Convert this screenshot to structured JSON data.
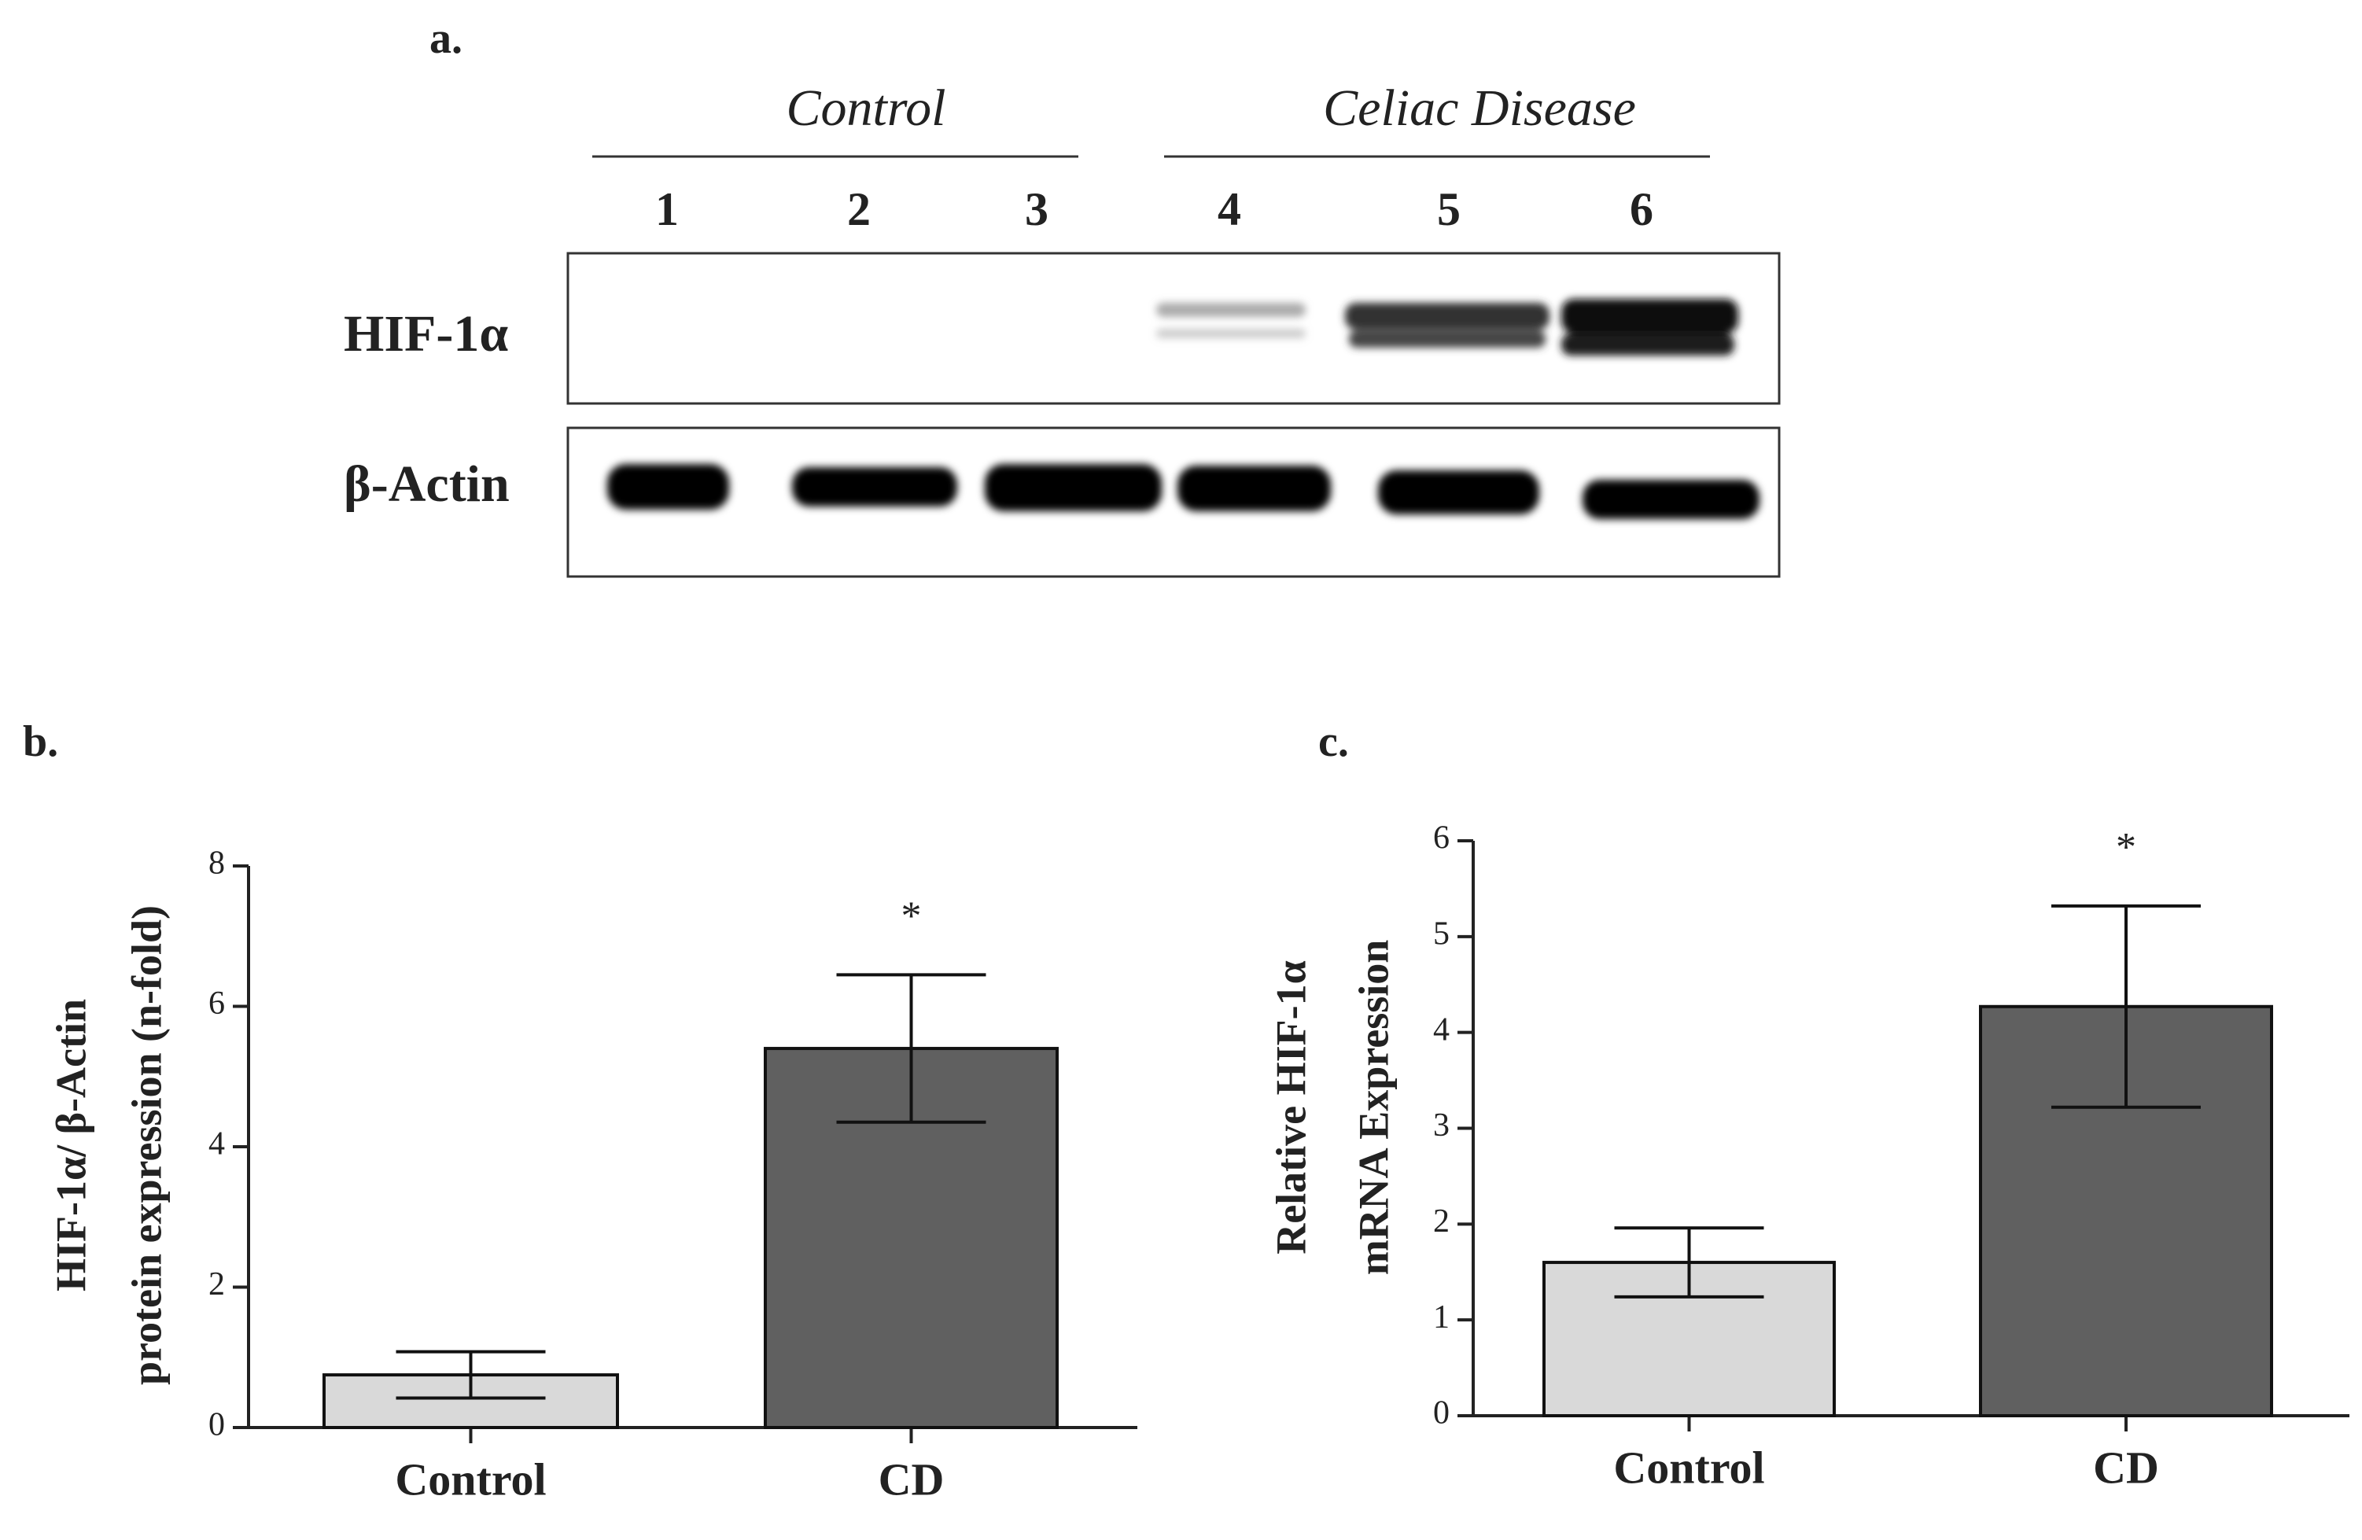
{
  "blot": {
    "panel_label": "a.",
    "groups": [
      {
        "label": "Control"
      },
      {
        "label": "Celiac Disease"
      }
    ],
    "lanes": [
      "1",
      "2",
      "3",
      "4",
      "5",
      "6"
    ],
    "rows": [
      "HIF-1α",
      "β-Actin"
    ]
  },
  "chart_data": [
    {
      "type": "bar",
      "panel_label": "b.",
      "ylabel": [
        "HIF-1α/ β-Actin",
        "protein expression (n-fold)"
      ],
      "categories": [
        "Control",
        "CD"
      ],
      "values": [
        0.75,
        5.4
      ],
      "errors": [
        0.33,
        1.05
      ],
      "colors": [
        "#d9d9d9",
        "#606060"
      ],
      "significance": [
        null,
        "*"
      ],
      "ylim": [
        0,
        8
      ],
      "yticks": [
        0,
        2,
        4,
        6,
        8
      ]
    },
    {
      "type": "bar",
      "panel_label": "c.",
      "ylabel": [
        "Relative HIF-1α",
        "mRNA Expression"
      ],
      "categories": [
        "Control",
        "CD"
      ],
      "values": [
        1.6,
        4.27
      ],
      "errors": [
        0.36,
        1.05
      ],
      "colors": [
        "#d9d9d9",
        "#606060"
      ],
      "significance": [
        null,
        "*"
      ],
      "ylim": [
        0,
        6
      ],
      "yticks": [
        0,
        1,
        2,
        3,
        4,
        5,
        6
      ]
    }
  ]
}
